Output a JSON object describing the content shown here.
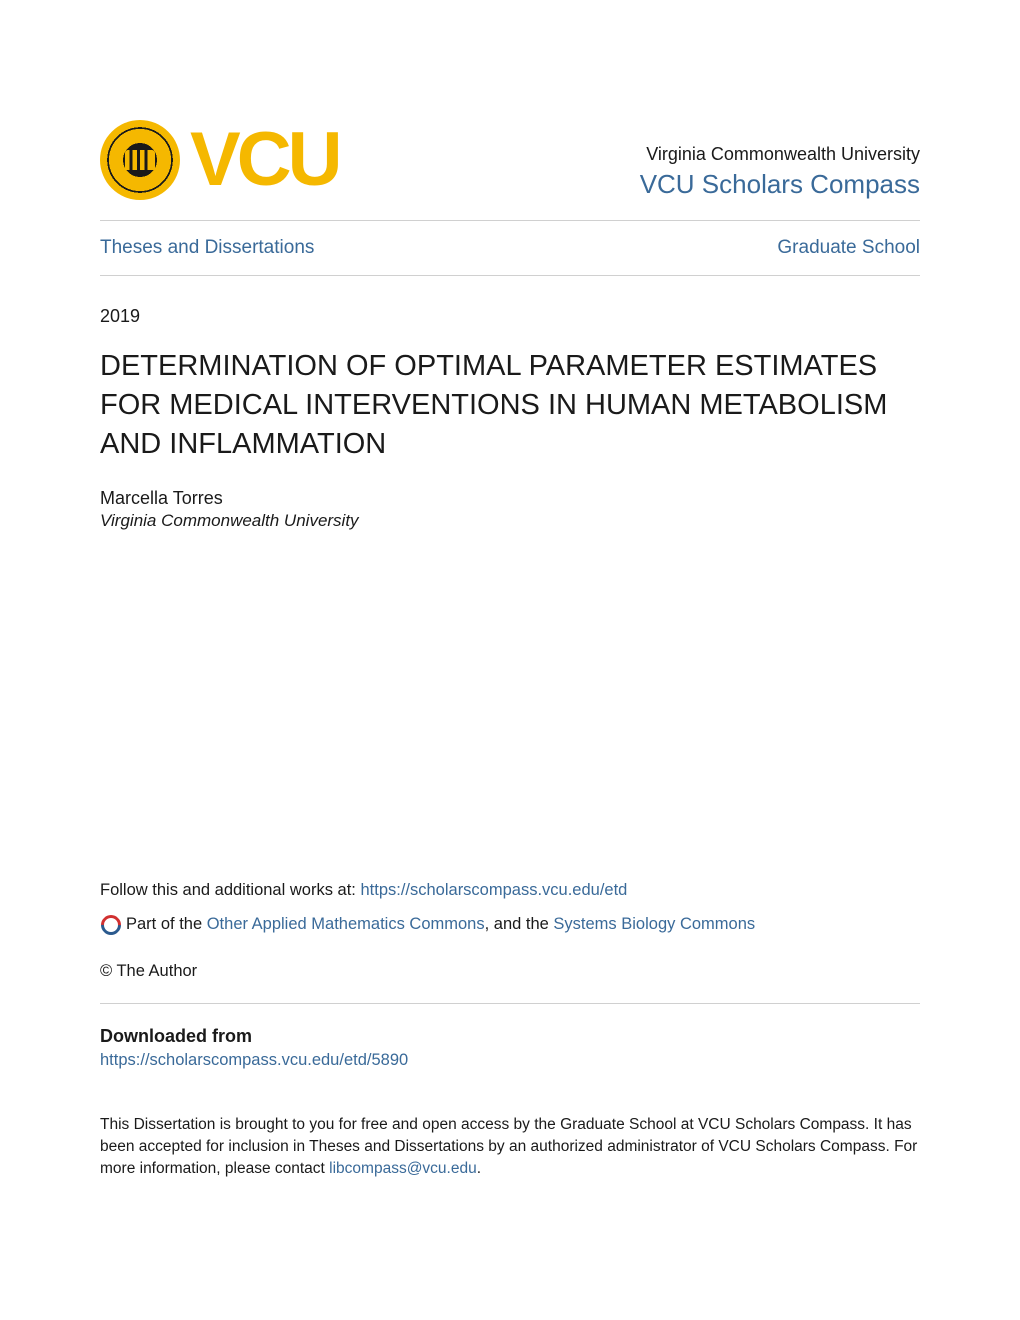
{
  "header": {
    "vcu_letters": "VCU",
    "university_name": "Virginia Commonwealth University",
    "compass_link": "VCU Scholars Compass"
  },
  "nav": {
    "left_link": "Theses and Dissertations",
    "right_link": "Graduate School"
  },
  "meta": {
    "year": "2019"
  },
  "title": "DETERMINATION OF OPTIMAL PARAMETER ESTIMATES FOR MEDICAL INTERVENTIONS IN HUMAN METABOLISM AND INFLAMMATION",
  "author": {
    "name": "Marcella Torres",
    "affiliation": "Virginia Commonwealth University"
  },
  "follow": {
    "prefix": "Follow this and additional works at: ",
    "url": "https://scholarscompass.vcu.edu/etd"
  },
  "partof": {
    "prefix": "Part of the ",
    "link1": "Other Applied Mathematics Commons",
    "mid": ", and the ",
    "link2": "Systems Biology Commons"
  },
  "copyright": "© The Author",
  "downloaded": {
    "heading": "Downloaded from",
    "url": "https://scholarscompass.vcu.edu/etd/5890"
  },
  "footer": {
    "text": "This Dissertation is brought to you for free and open access by the Graduate School at VCU Scholars Compass. It has been accepted for inclusion in Theses and Dissertations by an authorized administrator of VCU Scholars Compass. For more information, please contact ",
    "email": "libcompass@vcu.edu",
    "suffix": "."
  },
  "colors": {
    "background": "#ffffff",
    "text_primary": "#1a1a1a",
    "link": "#3a6a99",
    "accent_gold": "#f5b800",
    "divider": "#d0d0d0"
  },
  "typography": {
    "title_fontsize": 29,
    "body_fontsize": 16.5,
    "nav_fontsize": 19,
    "compass_fontsize": 26,
    "university_fontsize": 18,
    "vcu_fontsize": 76
  }
}
